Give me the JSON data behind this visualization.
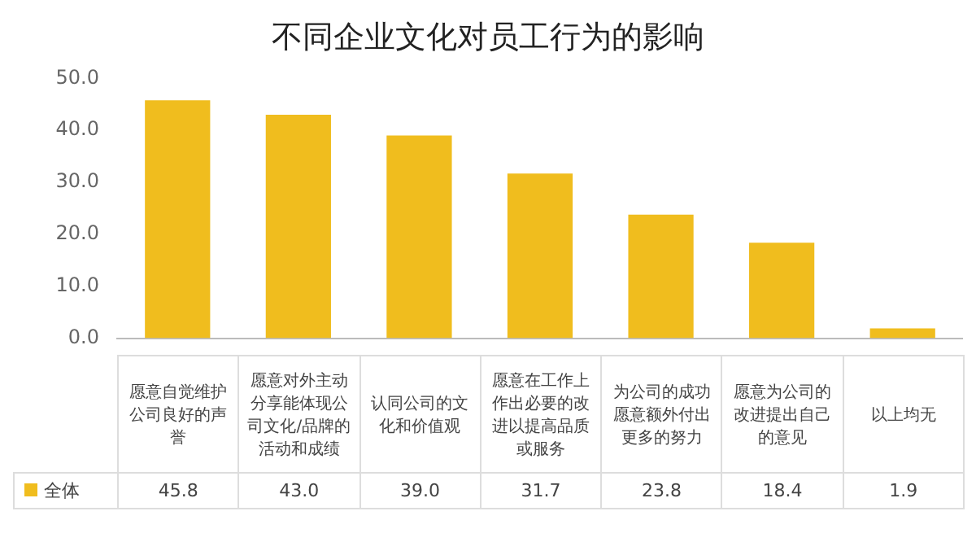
{
  "chart_data": {
    "type": "bar",
    "title": "不同企业文化对员工行为的影响",
    "categories": [
      "愿意自觉维护公司良好的声誉",
      "愿意对外主动分享能体现公司文化/品牌的活动和成绩",
      "认同公司的文化和价值观",
      "愿意在工作上作出必要的改进以提高品质或服务",
      "为公司的成功愿意额外付出更多的努力",
      "愿意为公司的改进提出自己的意见",
      "以上均无"
    ],
    "series": [
      {
        "name": "全体",
        "color": "#f0bd1e",
        "values": [
          45.8,
          43.0,
          39.0,
          31.7,
          23.8,
          18.4,
          1.9
        ],
        "value_labels": [
          "45.8",
          "43.0",
          "39.0",
          "31.7",
          "23.8",
          "18.4",
          "1.9"
        ]
      }
    ],
    "ylim": [
      0,
      50
    ],
    "yticks": [
      {
        "value": 0,
        "label": "0.0"
      },
      {
        "value": 10,
        "label": "10.0"
      },
      {
        "value": 20,
        "label": "20.0"
      },
      {
        "value": 30,
        "label": "30.0"
      },
      {
        "value": 40,
        "label": "40.0"
      },
      {
        "value": 50,
        "label": "50.0"
      }
    ],
    "grid": false,
    "legend": "bottom left"
  }
}
